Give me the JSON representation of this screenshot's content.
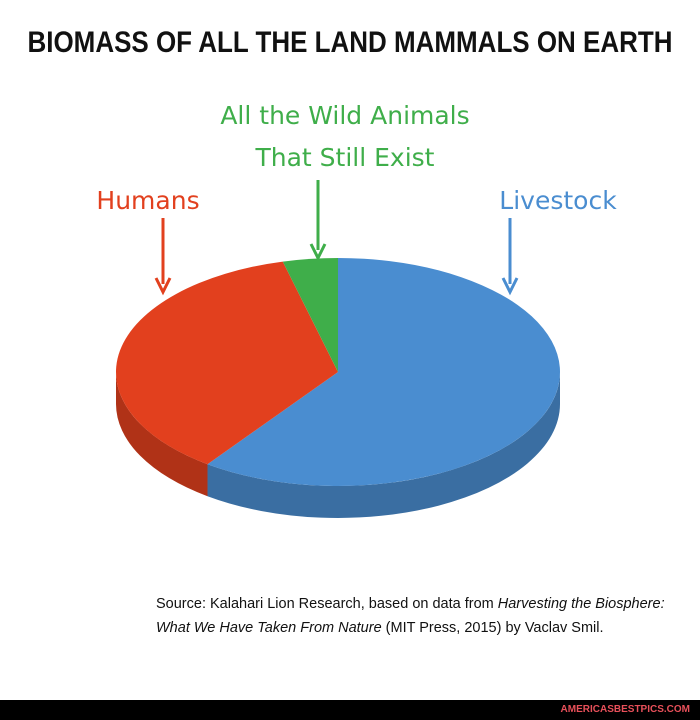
{
  "chart_data": {
    "type": "pie3d",
    "title": "BIOMASS OF ALL THE LAND MAMMALS ON EARTH",
    "categories": [
      "Livestock",
      "Humans",
      "All the Wild Animals That Still Exist"
    ],
    "values": [
      60,
      36,
      4
    ],
    "colors": [
      "#4a8dd0",
      "#e2401e",
      "#3fae4a"
    ],
    "source": [
      "Source: Kalahari Lion Research, based on data from ",
      "Harvesting the Biosphere: What We Have Taken From Nature",
      " (MIT Press, 2015) by Vaclav Smil."
    ]
  },
  "watermark": "AMERICASBESTPICS.COM"
}
